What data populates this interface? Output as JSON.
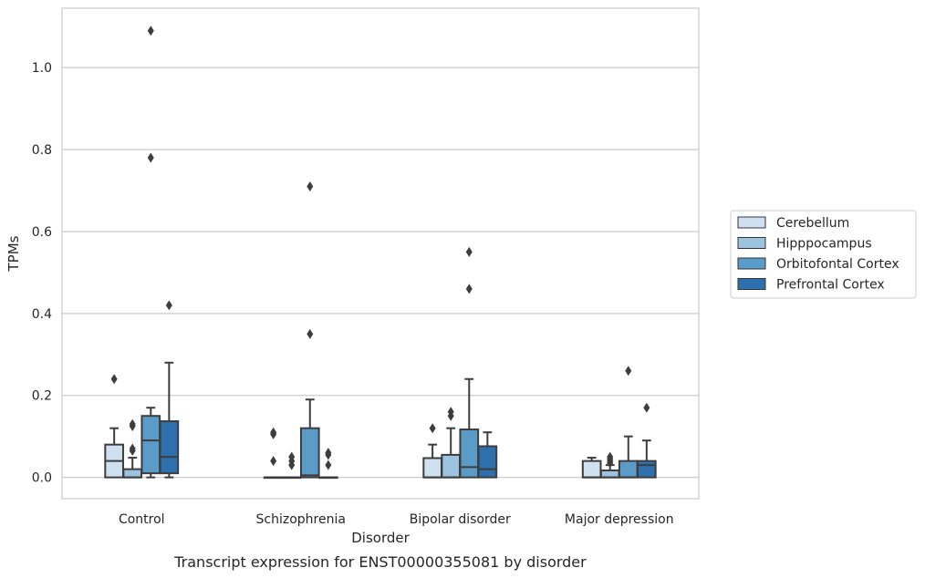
{
  "chart_data": {
    "type": "box",
    "xlabel": "Disorder",
    "ylabel": "TPMs",
    "caption": "Transcript expression for ENST00000355081 by disorder",
    "ylim": [
      -0.052,
      1.145
    ],
    "yticks": [
      0.0,
      0.2,
      0.4,
      0.6,
      0.8,
      1.0
    ],
    "ytick_labels": [
      "0.0",
      "0.2",
      "0.4",
      "0.6",
      "0.8",
      "1.0"
    ],
    "grid": "horizontal",
    "legend_position": "right",
    "categories": [
      "Control",
      "Schizophrenia",
      "Bipolar disorder",
      "Major depression"
    ],
    "series": [
      {
        "name": "Cerebellum",
        "color": "#cfe0f1",
        "boxes": [
          {
            "q1": 0.0,
            "median": 0.04,
            "q3": 0.08,
            "whisker_low": 0.0,
            "whisker_high": 0.12,
            "outliers": [
              0.24
            ]
          },
          {
            "q1": 0.0,
            "median": 0.0,
            "q3": 0.0,
            "whisker_low": 0.0,
            "whisker_high": 0.0,
            "outliers": [
              0.04,
              0.105,
              0.11
            ]
          },
          {
            "q1": 0.0,
            "median": 0.0,
            "q3": 0.047,
            "whisker_low": 0.0,
            "whisker_high": 0.08,
            "outliers": [
              0.12
            ]
          },
          {
            "q1": 0.0,
            "median": 0.0,
            "q3": 0.04,
            "whisker_low": 0.0,
            "whisker_high": 0.048,
            "outliers": []
          }
        ]
      },
      {
        "name": "Hipppocampus",
        "color": "#9dc4de",
        "boxes": [
          {
            "q1": 0.0,
            "median": 0.0,
            "q3": 0.02,
            "whisker_low": 0.0,
            "whisker_high": 0.048,
            "outliers": [
              0.065,
              0.07,
              0.125,
              0.13
            ]
          },
          {
            "q1": 0.0,
            "median": 0.0,
            "q3": 0.0,
            "whisker_low": 0.0,
            "whisker_high": 0.0,
            "outliers": [
              0.03,
              0.04,
              0.05
            ]
          },
          {
            "q1": 0.0,
            "median": 0.0,
            "q3": 0.055,
            "whisker_low": 0.0,
            "whisker_high": 0.12,
            "outliers": [
              0.15,
              0.16
            ]
          },
          {
            "q1": 0.0,
            "median": 0.0,
            "q3": 0.017,
            "whisker_low": 0.0,
            "whisker_high": 0.03,
            "outliers": [
              0.035,
              0.04,
              0.045,
              0.05
            ]
          }
        ]
      },
      {
        "name": "Orbitofontal Cortex",
        "color": "#5a9bc8",
        "boxes": [
          {
            "q1": 0.01,
            "median": 0.09,
            "q3": 0.15,
            "whisker_low": 0.0,
            "whisker_high": 0.17,
            "outliers": [
              0.78,
              1.09
            ]
          },
          {
            "q1": 0.0,
            "median": 0.005,
            "q3": 0.12,
            "whisker_low": 0.0,
            "whisker_high": 0.19,
            "outliers": [
              0.35,
              0.71
            ]
          },
          {
            "q1": 0.0,
            "median": 0.025,
            "q3": 0.117,
            "whisker_low": 0.0,
            "whisker_high": 0.24,
            "outliers": [
              0.46,
              0.55
            ]
          },
          {
            "q1": 0.0,
            "median": 0.0,
            "q3": 0.04,
            "whisker_low": 0.0,
            "whisker_high": 0.1,
            "outliers": [
              0.26
            ]
          }
        ]
      },
      {
        "name": "Prefrontal Cortex",
        "color": "#2e6fad",
        "boxes": [
          {
            "q1": 0.01,
            "median": 0.05,
            "q3": 0.137,
            "whisker_low": 0.0,
            "whisker_high": 0.28,
            "outliers": [
              0.42
            ]
          },
          {
            "q1": 0.0,
            "median": 0.0,
            "q3": 0.0,
            "whisker_low": 0.0,
            "whisker_high": 0.0,
            "outliers": [
              0.03,
              0.055,
              0.06
            ]
          },
          {
            "q1": 0.0,
            "median": 0.02,
            "q3": 0.076,
            "whisker_low": 0.0,
            "whisker_high": 0.11,
            "outliers": []
          },
          {
            "q1": 0.0,
            "median": 0.03,
            "q3": 0.04,
            "whisker_low": 0.0,
            "whisker_high": 0.09,
            "outliers": [
              0.17
            ]
          }
        ]
      }
    ]
  }
}
